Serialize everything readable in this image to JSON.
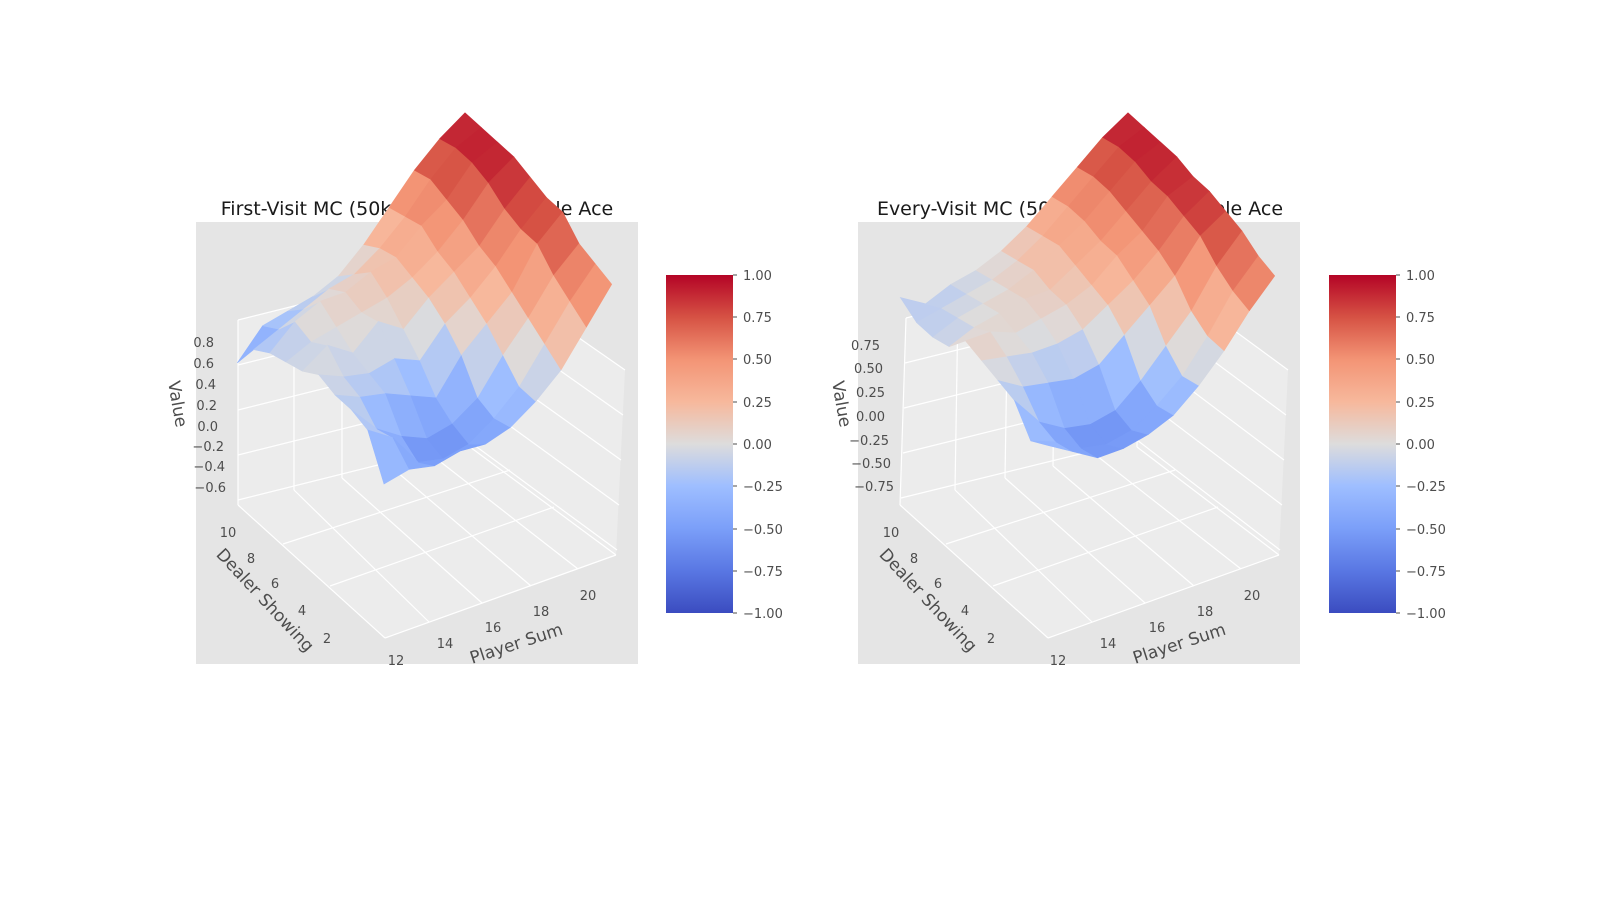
{
  "chart_data": [
    {
      "type": "surface3d",
      "title": "First-Visit MC (50k episodes) - Usable Ace",
      "xlabel": "Player Sum",
      "ylabel": "Dealer Showing",
      "zlabel": "Value",
      "x": [
        12,
        13,
        14,
        15,
        16,
        17,
        18,
        19,
        20,
        21
      ],
      "y": [
        1,
        2,
        3,
        4,
        5,
        6,
        7,
        8,
        9,
        10
      ],
      "xticks": [
        "12",
        "14",
        "16",
        "18",
        "20"
      ],
      "yticks": [
        "2",
        "4",
        "6",
        "8",
        "10"
      ],
      "zticks": [
        "−0.6",
        "−0.4",
        "−0.2",
        "0.0",
        "0.2",
        "0.4",
        "0.6",
        "0.8"
      ],
      "zlim": [
        -0.7,
        0.95
      ],
      "z": [
        [
          -0.45,
          -0.4,
          -0.45,
          -0.4,
          -0.42,
          -0.35,
          -0.2,
          0.0,
          0.3,
          0.6
        ],
        [
          -0.1,
          -0.25,
          -0.55,
          -0.6,
          -0.55,
          -0.4,
          -0.2,
          0.1,
          0.4,
          0.65
        ],
        [
          -0.05,
          -0.3,
          -0.45,
          -0.55,
          -0.5,
          -0.35,
          -0.05,
          0.2,
          0.5,
          0.7
        ],
        [
          -0.05,
          -0.15,
          -0.2,
          -0.3,
          -0.4,
          -0.1,
          0.1,
          0.3,
          0.65,
          0.85
        ],
        [
          0.0,
          -0.1,
          -0.15,
          -0.1,
          -0.2,
          0.05,
          0.2,
          0.4,
          0.65,
          0.85
        ],
        [
          -0.1,
          0.05,
          -0.1,
          0.1,
          -0.05,
          0.15,
          0.3,
          0.45,
          0.7,
          0.9
        ],
        [
          -0.15,
          -0.05,
          0.0,
          0.05,
          0.1,
          0.2,
          0.35,
          0.55,
          0.8,
          0.95
        ],
        [
          -0.2,
          0.0,
          0.1,
          0.1,
          0.2,
          0.25,
          0.45,
          0.6,
          0.85,
          0.95
        ],
        [
          -0.3,
          -0.2,
          -0.1,
          0.0,
          0.05,
          0.2,
          0.4,
          0.65,
          0.85,
          0.95
        ],
        [
          -0.55,
          -0.3,
          -0.25,
          -0.2,
          -0.1,
          0.1,
          0.35,
          0.6,
          0.8,
          0.95
        ]
      ],
      "colorbar": {
        "min": -1.0,
        "max": 1.0,
        "ticks": [
          "1.00",
          "0.75",
          "0.50",
          "0.25",
          "0.00",
          "−0.25",
          "−0.50",
          "−0.75",
          "−1.00"
        ]
      }
    },
    {
      "type": "surface3d",
      "title": "Every-Visit MC (50k episodes) - Usable Ace",
      "xlabel": "Player Sum",
      "ylabel": "Dealer Showing",
      "zlabel": "Value",
      "x": [
        12,
        13,
        14,
        15,
        16,
        17,
        18,
        19,
        20,
        21
      ],
      "y": [
        1,
        2,
        3,
        4,
        5,
        6,
        7,
        8,
        9,
        10
      ],
      "xticks": [
        "12",
        "14",
        "16",
        "18",
        "20"
      ],
      "yticks": [
        "2",
        "4",
        "6",
        "8",
        "10"
      ],
      "zticks": [
        "−0.75",
        "−0.50",
        "−0.25",
        "0.00",
        "0.25",
        "0.50",
        "0.75"
      ],
      "zlim": [
        -0.85,
        0.95
      ],
      "z": [
        [
          -0.2,
          -0.35,
          -0.5,
          -0.5,
          -0.45,
          -0.35,
          -0.15,
          0.1,
          0.4,
          0.65
        ],
        [
          -0.3,
          -0.4,
          -0.55,
          -0.6,
          -0.55,
          -0.4,
          -0.2,
          0.1,
          0.45,
          0.7
        ],
        [
          -0.05,
          -0.35,
          -0.5,
          -0.55,
          -0.5,
          -0.3,
          -0.05,
          0.2,
          0.55,
          0.8
        ],
        [
          0.0,
          -0.15,
          -0.2,
          -0.25,
          -0.2,
          0.0,
          0.2,
          0.4,
          0.7,
          0.85
        ],
        [
          0.05,
          0.0,
          -0.05,
          -0.05,
          0.0,
          0.15,
          0.3,
          0.5,
          0.75,
          0.9
        ],
        [
          0.1,
          0.1,
          0.0,
          0.05,
          0.1,
          0.2,
          0.4,
          0.55,
          0.8,
          0.9
        ],
        [
          -0.1,
          0.0,
          0.05,
          0.1,
          0.1,
          0.25,
          0.4,
          0.6,
          0.8,
          0.95
        ],
        [
          -0.15,
          -0.05,
          0.0,
          0.05,
          0.15,
          0.3,
          0.45,
          0.65,
          0.85,
          0.95
        ],
        [
          -0.15,
          -0.1,
          -0.05,
          0.0,
          0.1,
          0.25,
          0.45,
          0.65,
          0.85,
          0.95
        ],
        [
          -0.05,
          -0.2,
          -0.1,
          -0.05,
          0.05,
          0.2,
          0.4,
          0.6,
          0.8,
          0.95
        ]
      ],
      "colorbar": {
        "min": -1.0,
        "max": 1.0,
        "ticks": [
          "1.00",
          "0.75",
          "0.50",
          "0.25",
          "0.00",
          "−0.25",
          "−0.50",
          "−0.75",
          "−1.00"
        ]
      }
    }
  ]
}
